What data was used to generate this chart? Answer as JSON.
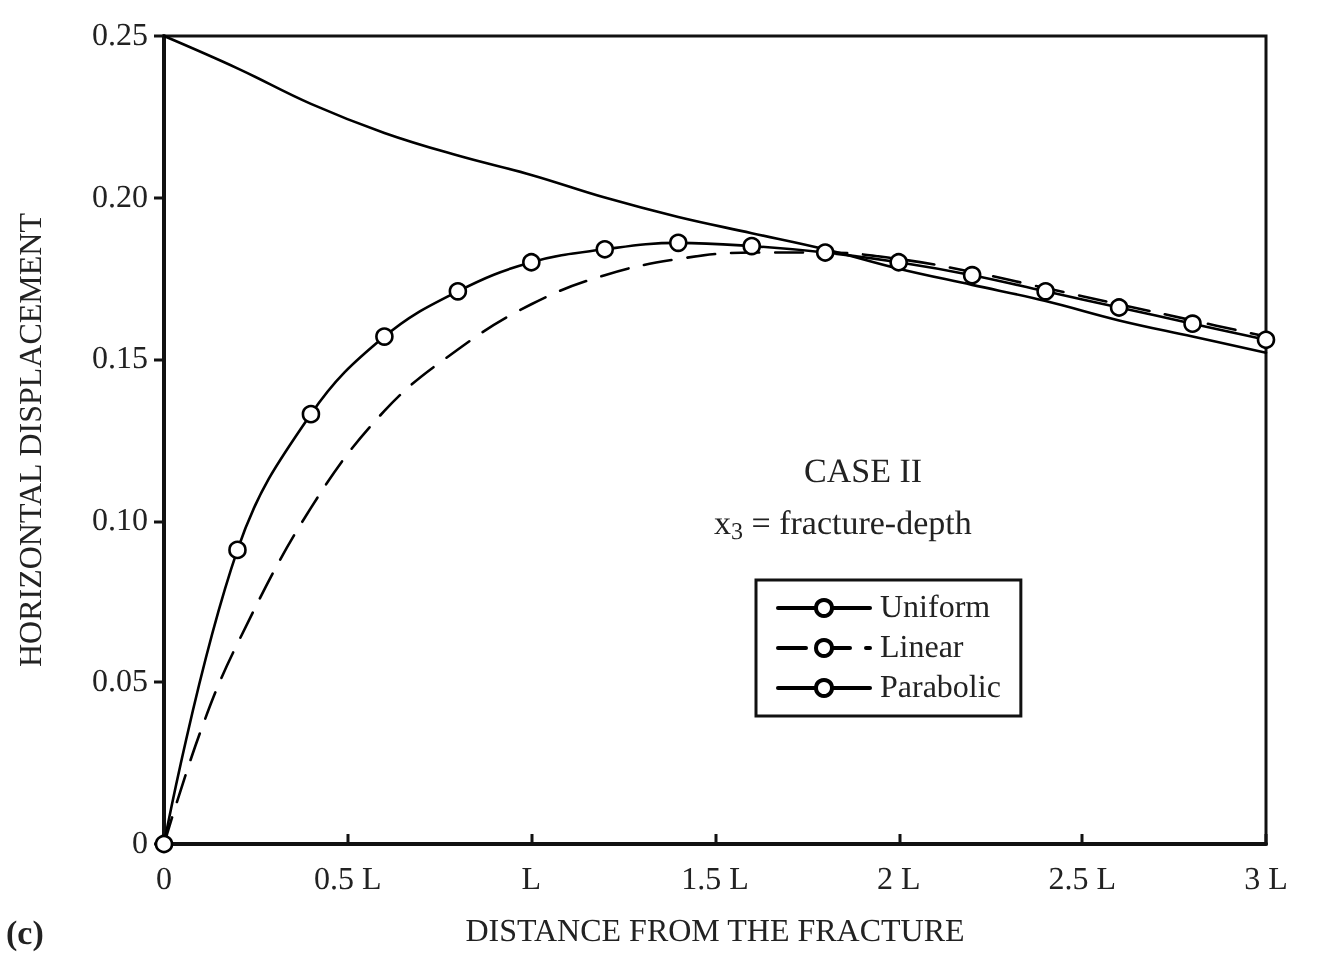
{
  "chart_data": {
    "type": "line",
    "xlabel": "DISTANCE FROM THE FRACTURE",
    "ylabel": "HORIZONTAL DISPLACEMENT",
    "annotations": [
      "CASE II",
      "x$_{3}$ = fracture-depth",
      "(c)"
    ],
    "xlim": [
      0,
      3
    ],
    "xticks": [
      0,
      {
        "value": 0.5,
        "label": "0.5 L"
      },
      {
        "value": 1,
        "label": "L"
      },
      {
        "value": 1.5,
        "label": "1.5 L"
      },
      {
        "value": 2,
        "label": "2 L"
      },
      {
        "value": 2.5,
        "label": "2.5 L"
      },
      {
        "value": 3,
        "label": "3 L"
      }
    ],
    "ylim": [
      0,
      0.25
    ],
    "yticks": [
      0,
      0.05,
      {
        "value": 0.1,
        "label": "0.10"
      },
      0.15,
      {
        "value": 0.2,
        "label": "0.20"
      },
      0.25
    ],
    "grid": false,
    "legend": "bottom right",
    "series": [
      {
        "name": "Uniform",
        "color": "#000000",
        "line_style": "solid",
        "marker": "none",
        "x": [
          0,
          0.2,
          0.4,
          0.6,
          0.8,
          1.0,
          1.2,
          1.4,
          1.6,
          1.8,
          2.0,
          2.2,
          2.4,
          2.6,
          2.8,
          3.0
        ],
        "values": [
          0.25,
          0.24,
          0.229,
          0.22,
          0.213,
          0.207,
          0.2,
          0.194,
          0.189,
          0.184,
          0.178,
          0.173,
          0.168,
          0.162,
          0.157,
          0.152
        ]
      },
      {
        "name": "Linear",
        "color": "#000000",
        "line_style": "dashed",
        "marker": "none",
        "x": [
          0,
          0.1,
          0.2,
          0.4,
          0.6,
          0.8,
          1.0,
          1.2,
          1.4,
          1.6,
          1.8,
          2.0,
          2.2,
          2.4,
          2.6,
          2.8,
          3.0
        ],
        "values": [
          0,
          0.035,
          0.062,
          0.104,
          0.134,
          0.153,
          0.167,
          0.176,
          0.181,
          0.183,
          0.183,
          0.181,
          0.177,
          0.172,
          0.167,
          0.162,
          0.157
        ]
      },
      {
        "name": "Parabolic",
        "color": "#000000",
        "line_style": "solid",
        "marker": "circle",
        "x": [
          0,
          0.2,
          0.4,
          0.6,
          0.8,
          1.0,
          1.2,
          1.4,
          1.6,
          1.8,
          2.0,
          2.2,
          2.4,
          2.6,
          2.8,
          3.0
        ],
        "values": [
          0,
          0.091,
          0.133,
          0.157,
          0.171,
          0.18,
          0.184,
          0.186,
          0.185,
          0.183,
          0.18,
          0.176,
          0.171,
          0.166,
          0.161,
          0.156
        ]
      }
    ]
  }
}
